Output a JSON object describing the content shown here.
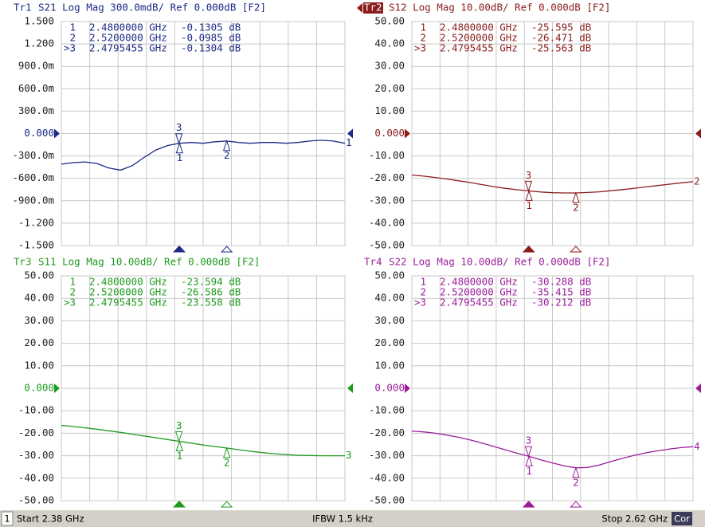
{
  "chart_data": [
    {
      "type": "line",
      "trace": "Tr1",
      "title": "S21 Log Mag 300.0mdB/ Ref 0.000dB [F2]",
      "active": false,
      "trace_label": "1",
      "color": "#1c2a86",
      "ref_level": 0,
      "xlim": [
        2.38,
        2.62
      ],
      "xticks": [
        2.38,
        2.404,
        2.428,
        2.452,
        2.476,
        2.5,
        2.524,
        2.548,
        2.572,
        2.596,
        2.62
      ],
      "ylim": [
        -1.5,
        1.5
      ],
      "yticks": [
        {
          "value": 1.5,
          "label": "1.500"
        },
        {
          "value": 1.2,
          "label": "1.200"
        },
        {
          "value": 0.9,
          "label": "900.0m"
        },
        {
          "value": 0.6,
          "label": "600.0m"
        },
        {
          "value": 0.3,
          "label": "300.0m"
        },
        {
          "value": 0,
          "label": "0.000"
        },
        {
          "value": -0.3,
          "label": "-300.0m"
        },
        {
          "value": -0.6,
          "label": "-600.0m"
        },
        {
          "value": -0.9,
          "label": "-900.0m"
        },
        {
          "value": -1.2,
          "label": "-1.200"
        },
        {
          "value": -1.5,
          "label": "-1.500"
        }
      ],
      "x": [
        2.38,
        2.39,
        2.4,
        2.41,
        2.42,
        2.43,
        2.44,
        2.45,
        2.46,
        2.47,
        2.48,
        2.49,
        2.5,
        2.51,
        2.52,
        2.53,
        2.54,
        2.55,
        2.56,
        2.57,
        2.58,
        2.59,
        2.6,
        2.61,
        2.62
      ],
      "values": [
        -0.41,
        -0.39,
        -0.38,
        -0.4,
        -0.46,
        -0.49,
        -0.43,
        -0.32,
        -0.22,
        -0.16,
        -0.13,
        -0.12,
        -0.13,
        -0.11,
        -0.1,
        -0.12,
        -0.13,
        -0.12,
        -0.12,
        -0.13,
        -0.12,
        -0.1,
        -0.09,
        -0.1,
        -0.13
      ],
      "markers": [
        {
          "id": "1",
          "row_label": "1",
          "active": false,
          "x": 2.48,
          "x_label": "2.4800000 GHz",
          "value": -0.1305,
          "value_label": "-0.1305 dB"
        },
        {
          "id": "2",
          "row_label": "2",
          "active": false,
          "x": 2.52,
          "x_label": "2.5200000 GHz",
          "value": -0.0985,
          "value_label": "-0.0985 dB"
        },
        {
          "id": "3",
          "row_label": ">3",
          "active": true,
          "x": 2.4795455,
          "x_label": "2.4795455 GHz",
          "value": -0.1304,
          "value_label": "-0.1304 dB"
        }
      ]
    },
    {
      "type": "line",
      "trace": "Tr2",
      "title": "S12 Log Mag 10.00dB/ Ref 0.000dB [F2]",
      "active": true,
      "trace_label": "2",
      "color": "#8b1c1c",
      "ref_level": 0,
      "xlim": [
        2.38,
        2.62
      ],
      "xticks": [
        2.38,
        2.404,
        2.428,
        2.452,
        2.476,
        2.5,
        2.524,
        2.548,
        2.572,
        2.596,
        2.62
      ],
      "ylim": [
        -50,
        50
      ],
      "yticks": [
        {
          "value": 50,
          "label": "50.00"
        },
        {
          "value": 40,
          "label": "40.00"
        },
        {
          "value": 30,
          "label": "30.00"
        },
        {
          "value": 20,
          "label": "20.00"
        },
        {
          "value": 10,
          "label": "10.00"
        },
        {
          "value": 0,
          "label": "0.000"
        },
        {
          "value": -10,
          "label": "-10.00"
        },
        {
          "value": -20,
          "label": "-20.00"
        },
        {
          "value": -30,
          "label": "-30.00"
        },
        {
          "value": -40,
          "label": "-40.00"
        },
        {
          "value": -50,
          "label": "-50.00"
        }
      ],
      "x": [
        2.38,
        2.39,
        2.4,
        2.41,
        2.42,
        2.43,
        2.44,
        2.45,
        2.46,
        2.47,
        2.48,
        2.49,
        2.5,
        2.51,
        2.52,
        2.53,
        2.54,
        2.55,
        2.56,
        2.57,
        2.58,
        2.59,
        2.6,
        2.61,
        2.62
      ],
      "values": [
        -18.5,
        -19.0,
        -19.6,
        -20.3,
        -21.1,
        -21.9,
        -22.8,
        -23.7,
        -24.5,
        -25.1,
        -25.6,
        -26.1,
        -26.4,
        -26.5,
        -26.5,
        -26.3,
        -26.0,
        -25.5,
        -25.0,
        -24.4,
        -23.8,
        -23.2,
        -22.6,
        -22.0,
        -21.5
      ],
      "markers": [
        {
          "id": "1",
          "row_label": "1",
          "active": false,
          "x": 2.48,
          "x_label": "2.4800000 GHz",
          "value": -25.595,
          "value_label": "-25.595 dB"
        },
        {
          "id": "2",
          "row_label": "2",
          "active": false,
          "x": 2.52,
          "x_label": "2.5200000 GHz",
          "value": -26.471,
          "value_label": "-26.471 dB"
        },
        {
          "id": "3",
          "row_label": ">3",
          "active": true,
          "x": 2.4795455,
          "x_label": "2.4795455 GHz",
          "value": -25.563,
          "value_label": "-25.563 dB"
        }
      ]
    },
    {
      "type": "line",
      "trace": "Tr3",
      "title": "S11 Log Mag 10.00dB/ Ref 0.000dB [F2]",
      "active": false,
      "trace_label": "3",
      "color": "#1e9a1e",
      "ref_level": 0,
      "xlim": [
        2.38,
        2.62
      ],
      "xticks": [
        2.38,
        2.404,
        2.428,
        2.452,
        2.476,
        2.5,
        2.524,
        2.548,
        2.572,
        2.596,
        2.62
      ],
      "ylim": [
        -50,
        50
      ],
      "yticks": [
        {
          "value": 50,
          "label": "50.00"
        },
        {
          "value": 40,
          "label": "40.00"
        },
        {
          "value": 30,
          "label": "30.00"
        },
        {
          "value": 20,
          "label": "20.00"
        },
        {
          "value": 10,
          "label": "10.00"
        },
        {
          "value": 0,
          "label": "0.000"
        },
        {
          "value": -10,
          "label": "-10.00"
        },
        {
          "value": -20,
          "label": "-20.00"
        },
        {
          "value": -30,
          "label": "-30.00"
        },
        {
          "value": -40,
          "label": "-40.00"
        },
        {
          "value": -50,
          "label": "-50.00"
        }
      ],
      "x": [
        2.38,
        2.39,
        2.4,
        2.41,
        2.42,
        2.43,
        2.44,
        2.45,
        2.46,
        2.47,
        2.48,
        2.49,
        2.5,
        2.51,
        2.52,
        2.53,
        2.54,
        2.55,
        2.56,
        2.57,
        2.58,
        2.59,
        2.6,
        2.61,
        2.62
      ],
      "values": [
        -16.5,
        -17.0,
        -17.6,
        -18.2,
        -18.9,
        -19.6,
        -20.4,
        -21.2,
        -22.0,
        -22.8,
        -23.6,
        -24.4,
        -25.2,
        -25.9,
        -26.6,
        -27.3,
        -28.0,
        -28.6,
        -29.1,
        -29.5,
        -29.8,
        -29.9,
        -30.0,
        -30.0,
        -30.0
      ],
      "markers": [
        {
          "id": "1",
          "row_label": "1",
          "active": false,
          "x": 2.48,
          "x_label": "2.4800000 GHz",
          "value": -23.594,
          "value_label": "-23.594 dB"
        },
        {
          "id": "2",
          "row_label": "2",
          "active": false,
          "x": 2.52,
          "x_label": "2.5200000 GHz",
          "value": -26.586,
          "value_label": "-26.586 dB"
        },
        {
          "id": "3",
          "row_label": ">3",
          "active": true,
          "x": 2.4795455,
          "x_label": "2.4795455 GHz",
          "value": -23.558,
          "value_label": "-23.558 dB"
        }
      ]
    },
    {
      "type": "line",
      "trace": "Tr4",
      "title": "S22 Log Mag 10.00dB/ Ref 0.000dB [F2]",
      "active": false,
      "trace_label": "4",
      "color": "#9a1e9a",
      "ref_level": 0,
      "xlim": [
        2.38,
        2.62
      ],
      "xticks": [
        2.38,
        2.404,
        2.428,
        2.452,
        2.476,
        2.5,
        2.524,
        2.548,
        2.572,
        2.596,
        2.62
      ],
      "ylim": [
        -50,
        50
      ],
      "yticks": [
        {
          "value": 50,
          "label": "50.00"
        },
        {
          "value": 40,
          "label": "40.00"
        },
        {
          "value": 30,
          "label": "30.00"
        },
        {
          "value": 20,
          "label": "20.00"
        },
        {
          "value": 10,
          "label": "10.00"
        },
        {
          "value": 0,
          "label": "0.000"
        },
        {
          "value": -10,
          "label": "-10.00"
        },
        {
          "value": -20,
          "label": "-20.00"
        },
        {
          "value": -30,
          "label": "-30.00"
        },
        {
          "value": -40,
          "label": "-40.00"
        },
        {
          "value": -50,
          "label": "-50.00"
        }
      ],
      "x": [
        2.38,
        2.39,
        2.4,
        2.41,
        2.42,
        2.43,
        2.44,
        2.45,
        2.46,
        2.47,
        2.48,
        2.49,
        2.5,
        2.51,
        2.52,
        2.53,
        2.54,
        2.55,
        2.56,
        2.57,
        2.58,
        2.59,
        2.6,
        2.61,
        2.62
      ],
      "values": [
        -19.0,
        -19.4,
        -20.0,
        -20.8,
        -21.8,
        -23.0,
        -24.4,
        -25.9,
        -27.4,
        -28.9,
        -30.3,
        -31.8,
        -33.2,
        -34.5,
        -35.4,
        -35.2,
        -34.1,
        -32.6,
        -31.1,
        -29.8,
        -28.7,
        -27.8,
        -27.0,
        -26.4,
        -26.0
      ],
      "markers": [
        {
          "id": "1",
          "row_label": "1",
          "active": false,
          "x": 2.48,
          "x_label": "2.4800000 GHz",
          "value": -30.288,
          "value_label": "-30.288 dB"
        },
        {
          "id": "2",
          "row_label": "2",
          "active": false,
          "x": 2.52,
          "x_label": "2.5200000 GHz",
          "value": -35.415,
          "value_label": "-35.415 dB"
        },
        {
          "id": "3",
          "row_label": ">3",
          "active": true,
          "x": 2.4795455,
          "x_label": "2.4795455 GHz",
          "value": -30.212,
          "value_label": "-30.212 dB"
        }
      ]
    }
  ],
  "status_bar": {
    "channel": "1",
    "start": "Start 2.38 GHz",
    "ifbw": "IFBW 1.5 kHz",
    "stop": "Stop 2.62 GHz",
    "correction": "Cor"
  }
}
